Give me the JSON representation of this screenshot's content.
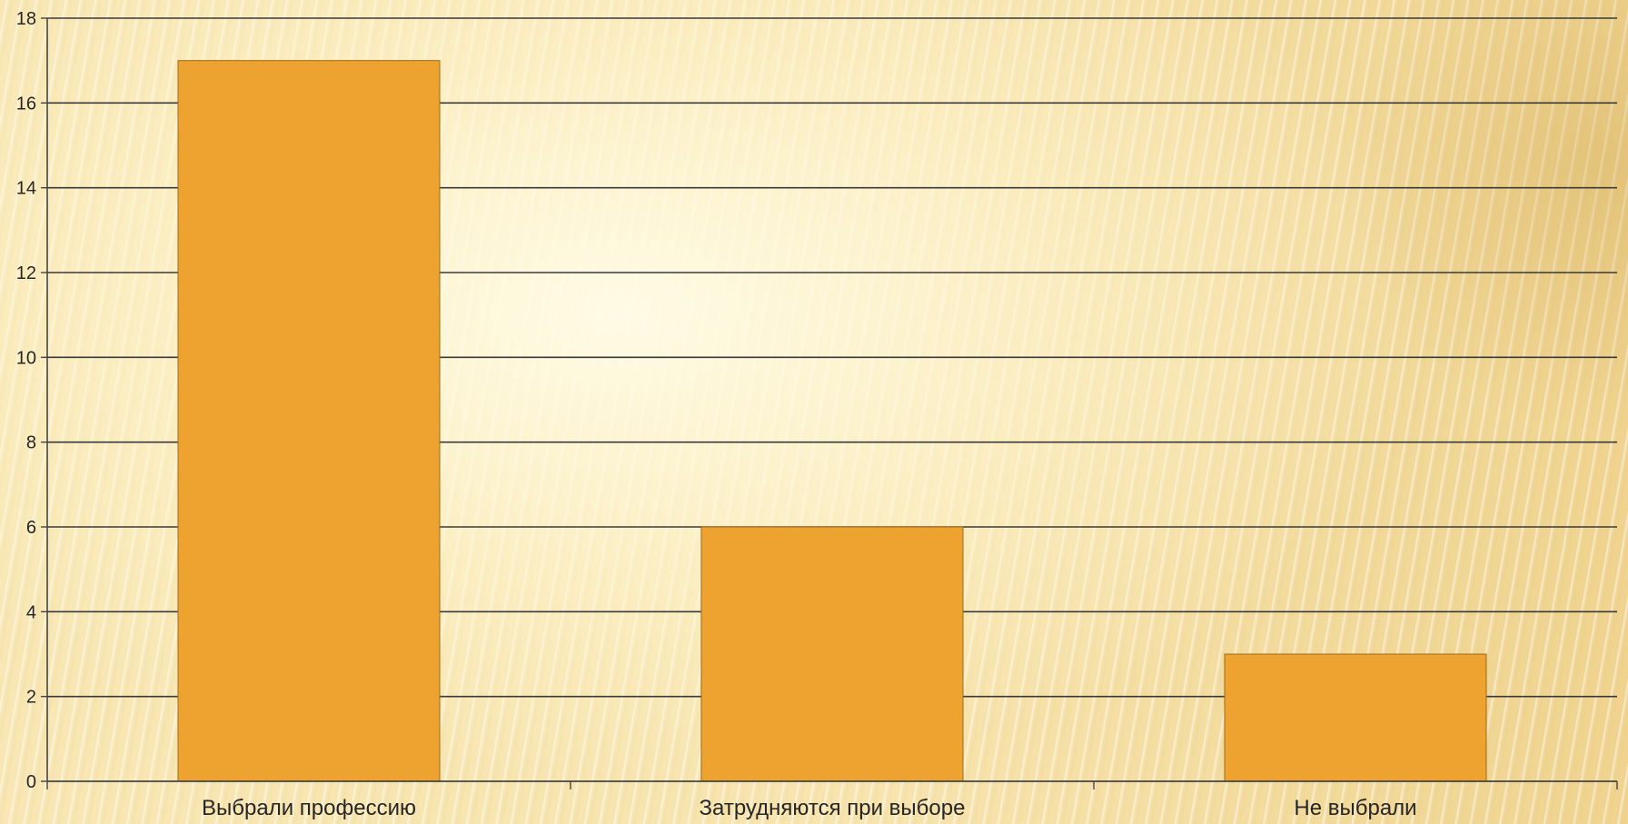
{
  "chart_data": {
    "type": "bar",
    "categories": [
      "Выбрали профессию",
      "Затрудняются при выборе",
      "Не выбрали"
    ],
    "values": [
      17,
      6,
      3
    ],
    "title": "",
    "xlabel": "",
    "ylabel": "",
    "ylim": [
      0,
      18
    ],
    "yticks": [
      "0",
      "2",
      "4",
      "6",
      "8",
      "10",
      "12",
      "14",
      "16",
      "18"
    ],
    "grid": true,
    "legend": "none",
    "colors": {
      "bar": "#eea22f",
      "bar_edge": "#9c6a1c",
      "grid": "#3a3a3a",
      "axis": "#444444",
      "text": "#262626"
    }
  }
}
